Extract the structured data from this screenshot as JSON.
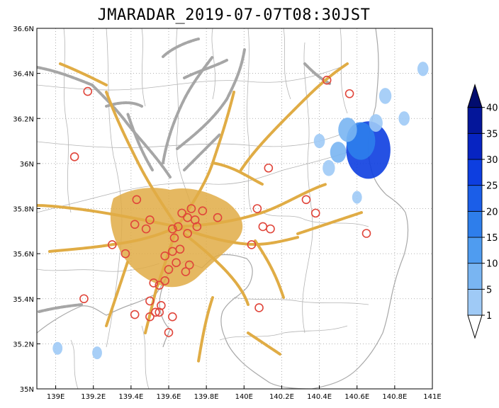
{
  "title": "JMARADAR_2019-07-07T08:30JST",
  "map": {
    "lon_range": [
      138.9,
      141.0
    ],
    "lat_range": [
      35.0,
      36.6
    ],
    "lon_ticks": [
      {
        "value": 139.0,
        "label": "139E"
      },
      {
        "value": 139.2,
        "label": "139.2E"
      },
      {
        "value": 139.4,
        "label": "139.4E"
      },
      {
        "value": 139.6,
        "label": "139.6E"
      },
      {
        "value": 139.8,
        "label": "139.8E"
      },
      {
        "value": 140.0,
        "label": "140E"
      },
      {
        "value": 140.2,
        "label": "140.2E"
      },
      {
        "value": 140.4,
        "label": "140.4E"
      },
      {
        "value": 140.6,
        "label": "140.6E"
      },
      {
        "value": 140.8,
        "label": "140.8E"
      },
      {
        "value": 141.0,
        "label": "141E"
      }
    ],
    "lat_ticks": [
      {
        "value": 35.0,
        "label": "35N"
      },
      {
        "value": 35.2,
        "label": "35.2N"
      },
      {
        "value": 35.4,
        "label": "35.4N"
      },
      {
        "value": 35.6,
        "label": "35.6N"
      },
      {
        "value": 35.8,
        "label": "35.8N"
      },
      {
        "value": 36.0,
        "label": "36N"
      },
      {
        "value": 36.2,
        "label": "36.2N"
      },
      {
        "value": 36.4,
        "label": "36.4N"
      },
      {
        "value": 36.6,
        "label": "36.6N"
      }
    ],
    "gridlines": "dotted",
    "colors": {
      "land": "#ffffff",
      "ocean": "#ffffff",
      "coastline": "#a8a8a8",
      "boundaries": "#b4b4b4",
      "roads_major": "#e0ac45",
      "roads_minor": "#a6a6a6",
      "stations": "#e0453a"
    },
    "stations": [
      {
        "lon": 139.17,
        "lat": 36.32
      },
      {
        "lon": 139.1,
        "lat": 36.03
      },
      {
        "lon": 140.44,
        "lat": 36.37
      },
      {
        "lon": 140.56,
        "lat": 36.31
      },
      {
        "lon": 140.13,
        "lat": 35.98
      },
      {
        "lon": 140.33,
        "lat": 35.84
      },
      {
        "lon": 140.38,
        "lat": 35.78
      },
      {
        "lon": 140.65,
        "lat": 35.69
      },
      {
        "lon": 140.07,
        "lat": 35.8
      },
      {
        "lon": 140.1,
        "lat": 35.72
      },
      {
        "lon": 140.14,
        "lat": 35.71
      },
      {
        "lon": 140.04,
        "lat": 35.64
      },
      {
        "lon": 139.43,
        "lat": 35.84
      },
      {
        "lon": 139.67,
        "lat": 35.78
      },
      {
        "lon": 139.72,
        "lat": 35.8
      },
      {
        "lon": 139.78,
        "lat": 35.79
      },
      {
        "lon": 139.86,
        "lat": 35.76
      },
      {
        "lon": 139.7,
        "lat": 35.76
      },
      {
        "lon": 139.74,
        "lat": 35.75
      },
      {
        "lon": 139.75,
        "lat": 35.72
      },
      {
        "lon": 139.65,
        "lat": 35.72
      },
      {
        "lon": 139.62,
        "lat": 35.71
      },
      {
        "lon": 139.42,
        "lat": 35.73
      },
      {
        "lon": 139.48,
        "lat": 35.71
      },
      {
        "lon": 139.5,
        "lat": 35.75
      },
      {
        "lon": 139.7,
        "lat": 35.69
      },
      {
        "lon": 139.63,
        "lat": 35.67
      },
      {
        "lon": 139.3,
        "lat": 35.64
      },
      {
        "lon": 139.37,
        "lat": 35.6
      },
      {
        "lon": 139.58,
        "lat": 35.59
      },
      {
        "lon": 139.62,
        "lat": 35.61
      },
      {
        "lon": 139.66,
        "lat": 35.62
      },
      {
        "lon": 139.64,
        "lat": 35.56
      },
      {
        "lon": 139.71,
        "lat": 35.55
      },
      {
        "lon": 139.6,
        "lat": 35.53
      },
      {
        "lon": 139.69,
        "lat": 35.52
      },
      {
        "lon": 139.52,
        "lat": 35.47
      },
      {
        "lon": 139.55,
        "lat": 35.46
      },
      {
        "lon": 139.58,
        "lat": 35.48
      },
      {
        "lon": 139.15,
        "lat": 35.4
      },
      {
        "lon": 139.42,
        "lat": 35.33
      },
      {
        "lon": 139.5,
        "lat": 35.32
      },
      {
        "lon": 139.53,
        "lat": 35.34
      },
      {
        "lon": 139.55,
        "lat": 35.34
      },
      {
        "lon": 139.56,
        "lat": 35.37
      },
      {
        "lon": 139.5,
        "lat": 35.39
      },
      {
        "lon": 139.62,
        "lat": 35.32
      },
      {
        "lon": 139.6,
        "lat": 35.25
      },
      {
        "lon": 140.08,
        "lat": 35.36
      }
    ],
    "echo_cells": [
      {
        "lon": 140.66,
        "lat": 36.06,
        "value": 28
      },
      {
        "lon": 140.62,
        "lat": 36.1,
        "value": 16
      },
      {
        "lon": 140.55,
        "lat": 36.15,
        "value": 8
      },
      {
        "lon": 140.5,
        "lat": 36.05,
        "value": 6
      },
      {
        "lon": 140.7,
        "lat": 36.18,
        "value": 4
      },
      {
        "lon": 140.75,
        "lat": 36.3,
        "value": 3
      },
      {
        "lon": 140.45,
        "lat": 35.98,
        "value": 3
      },
      {
        "lon": 140.85,
        "lat": 36.2,
        "value": 2
      },
      {
        "lon": 140.4,
        "lat": 36.1,
        "value": 2
      },
      {
        "lon": 140.95,
        "lat": 36.42,
        "value": 2
      },
      {
        "lon": 139.01,
        "lat": 35.18,
        "value": 1
      },
      {
        "lon": 139.22,
        "lat": 35.16,
        "value": 1
      },
      {
        "lon": 140.6,
        "lat": 35.85,
        "value": 1
      }
    ]
  },
  "colorbar": {
    "levels": [
      {
        "label": "1",
        "color": "#9fcaf6"
      },
      {
        "label": "5",
        "color": "#79b5f2"
      },
      {
        "label": "10",
        "color": "#4f9cf0"
      },
      {
        "label": "15",
        "color": "#2e7eeb"
      },
      {
        "label": "20",
        "color": "#1b5ee8"
      },
      {
        "label": "25",
        "color": "#0d3ee0"
      },
      {
        "label": "30",
        "color": "#0724c2"
      },
      {
        "label": "35",
        "color": "#04169a"
      },
      {
        "label": "40",
        "color": "#020c6e"
      }
    ],
    "under_color": "#ffffff",
    "over_color": "#020c6e"
  }
}
